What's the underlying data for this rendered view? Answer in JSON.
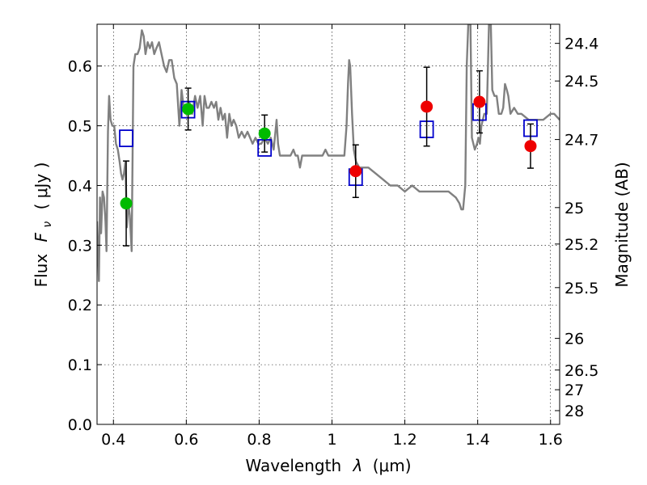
{
  "chart_data": {
    "type": "scatter",
    "title": "",
    "xlabel_prefix": "Wavelength",
    "xlabel_symbol": "λ",
    "xlabel_unit": "(μm)",
    "ylabel_prefix": "Flux",
    "ylabel_symbol": "F",
    "ylabel_subscript": "ν",
    "ylabel_unit": "( μJy )",
    "y2label": "Magnitude (AB)",
    "xlim": [
      0.355,
      1.625
    ],
    "ylim": [
      0.0,
      0.67
    ],
    "grid": true,
    "x_ticks": [
      0.4,
      0.6,
      0.8,
      1.0,
      1.2,
      1.4,
      1.6
    ],
    "x_tick_labels": [
      "0.4",
      "0.6",
      "0.8",
      "1",
      "1.2",
      "1.4",
      "1.6"
    ],
    "y_ticks": [
      0.0,
      0.1,
      0.2,
      0.3,
      0.4,
      0.5,
      0.6
    ],
    "y_tick_labels": [
      "0.0",
      "0.1",
      "0.2",
      "0.3",
      "0.4",
      "0.5",
      "0.6"
    ],
    "y2_ticks": [
      {
        "flux": 0.638,
        "label": "24.4"
      },
      {
        "flux": 0.575,
        "label": "24.5"
      },
      {
        "flux": 0.477,
        "label": "24.7"
      },
      {
        "flux": 0.363,
        "label": "25"
      },
      {
        "flux": 0.302,
        "label": "25.2"
      },
      {
        "flux": 0.229,
        "label": "25.5"
      },
      {
        "flux": 0.144,
        "label": "26"
      },
      {
        "flux": 0.091,
        "label": "26.5"
      },
      {
        "flux": 0.058,
        "label": "27"
      },
      {
        "flux": 0.023,
        "label": "28"
      }
    ],
    "series": [
      {
        "kind": "model_spectrum",
        "color": "#808080",
        "points": [
          [
            0.355,
            0.34
          ],
          [
            0.36,
            0.24
          ],
          [
            0.363,
            0.38
          ],
          [
            0.366,
            0.32
          ],
          [
            0.37,
            0.39
          ],
          [
            0.374,
            0.38
          ],
          [
            0.378,
            0.34
          ],
          [
            0.381,
            0.29
          ],
          [
            0.385,
            0.49
          ],
          [
            0.388,
            0.55
          ],
          [
            0.392,
            0.51
          ],
          [
            0.397,
            0.5
          ],
          [
            0.402,
            0.5
          ],
          [
            0.407,
            0.47
          ],
          [
            0.412,
            0.46
          ],
          [
            0.417,
            0.44
          ],
          [
            0.421,
            0.42
          ],
          [
            0.425,
            0.41
          ],
          [
            0.429,
            0.42
          ],
          [
            0.433,
            0.44
          ],
          [
            0.437,
            0.33
          ],
          [
            0.441,
            0.37
          ],
          [
            0.445,
            0.35
          ],
          [
            0.45,
            0.29
          ],
          [
            0.455,
            0.6
          ],
          [
            0.46,
            0.62
          ],
          [
            0.466,
            0.62
          ],
          [
            0.472,
            0.63
          ],
          [
            0.478,
            0.66
          ],
          [
            0.483,
            0.65
          ],
          [
            0.488,
            0.62
          ],
          [
            0.494,
            0.64
          ],
          [
            0.5,
            0.63
          ],
          [
            0.506,
            0.64
          ],
          [
            0.512,
            0.62
          ],
          [
            0.518,
            0.63
          ],
          [
            0.525,
            0.64
          ],
          [
            0.532,
            0.62
          ],
          [
            0.539,
            0.6
          ],
          [
            0.546,
            0.59
          ],
          [
            0.553,
            0.61
          ],
          [
            0.56,
            0.61
          ],
          [
            0.567,
            0.58
          ],
          [
            0.574,
            0.57
          ],
          [
            0.581,
            0.5
          ],
          [
            0.587,
            0.56
          ],
          [
            0.593,
            0.53
          ],
          [
            0.6,
            0.52
          ],
          [
            0.608,
            0.54
          ],
          [
            0.616,
            0.52
          ],
          [
            0.624,
            0.55
          ],
          [
            0.631,
            0.53
          ],
          [
            0.638,
            0.55
          ],
          [
            0.645,
            0.5
          ],
          [
            0.65,
            0.55
          ],
          [
            0.656,
            0.53
          ],
          [
            0.662,
            0.53
          ],
          [
            0.669,
            0.54
          ],
          [
            0.676,
            0.53
          ],
          [
            0.682,
            0.54
          ],
          [
            0.688,
            0.51
          ],
          [
            0.694,
            0.53
          ],
          [
            0.7,
            0.51
          ],
          [
            0.706,
            0.52
          ],
          [
            0.712,
            0.48
          ],
          [
            0.718,
            0.52
          ],
          [
            0.724,
            0.5
          ],
          [
            0.73,
            0.51
          ],
          [
            0.737,
            0.5
          ],
          [
            0.744,
            0.48
          ],
          [
            0.752,
            0.49
          ],
          [
            0.76,
            0.48
          ],
          [
            0.768,
            0.49
          ],
          [
            0.775,
            0.48
          ],
          [
            0.782,
            0.47
          ],
          [
            0.79,
            0.48
          ],
          [
            0.798,
            0.47
          ],
          [
            0.806,
            0.47
          ],
          [
            0.815,
            0.48
          ],
          [
            0.824,
            0.47
          ],
          [
            0.832,
            0.48
          ],
          [
            0.84,
            0.46
          ],
          [
            0.848,
            0.51
          ],
          [
            0.852,
            0.47
          ],
          [
            0.857,
            0.45
          ],
          [
            0.862,
            0.45
          ],
          [
            0.87,
            0.45
          ],
          [
            0.878,
            0.45
          ],
          [
            0.886,
            0.45
          ],
          [
            0.894,
            0.46
          ],
          [
            0.9,
            0.45
          ],
          [
            0.906,
            0.45
          ],
          [
            0.912,
            0.43
          ],
          [
            0.918,
            0.45
          ],
          [
            0.925,
            0.45
          ],
          [
            0.933,
            0.45
          ],
          [
            0.942,
            0.45
          ],
          [
            0.951,
            0.45
          ],
          [
            0.958,
            0.45
          ],
          [
            0.966,
            0.45
          ],
          [
            0.974,
            0.45
          ],
          [
            0.982,
            0.46
          ],
          [
            0.99,
            0.45
          ],
          [
            1.0,
            0.45
          ],
          [
            1.01,
            0.45
          ],
          [
            1.02,
            0.45
          ],
          [
            1.028,
            0.45
          ],
          [
            1.034,
            0.45
          ],
          [
            1.04,
            0.5
          ],
          [
            1.044,
            0.57
          ],
          [
            1.047,
            0.61
          ],
          [
            1.05,
            0.6
          ],
          [
            1.055,
            0.52
          ],
          [
            1.06,
            0.46
          ],
          [
            1.066,
            0.44
          ],
          [
            1.075,
            0.43
          ],
          [
            1.09,
            0.43
          ],
          [
            1.1,
            0.43
          ],
          [
            1.12,
            0.42
          ],
          [
            1.14,
            0.41
          ],
          [
            1.16,
            0.4
          ],
          [
            1.18,
            0.4
          ],
          [
            1.2,
            0.39
          ],
          [
            1.22,
            0.4
          ],
          [
            1.24,
            0.39
          ],
          [
            1.26,
            0.39
          ],
          [
            1.28,
            0.39
          ],
          [
            1.3,
            0.39
          ],
          [
            1.32,
            0.39
          ],
          [
            1.34,
            0.38
          ],
          [
            1.35,
            0.37
          ],
          [
            1.355,
            0.36
          ],
          [
            1.36,
            0.36
          ],
          [
            1.366,
            0.4
          ],
          [
            1.37,
            0.6
          ],
          [
            1.374,
            0.67
          ],
          [
            1.38,
            0.67
          ],
          [
            1.384,
            0.48
          ],
          [
            1.392,
            0.46
          ],
          [
            1.398,
            0.47
          ],
          [
            1.402,
            0.48
          ],
          [
            1.406,
            0.47
          ],
          [
            1.41,
            0.5
          ],
          [
            1.418,
            0.52
          ],
          [
            1.425,
            0.52
          ],
          [
            1.431,
            0.67
          ],
          [
            1.436,
            0.67
          ],
          [
            1.44,
            0.56
          ],
          [
            1.446,
            0.55
          ],
          [
            1.452,
            0.55
          ],
          [
            1.458,
            0.52
          ],
          [
            1.465,
            0.52
          ],
          [
            1.47,
            0.53
          ],
          [
            1.475,
            0.57
          ],
          [
            1.48,
            0.56
          ],
          [
            1.484,
            0.55
          ],
          [
            1.49,
            0.52
          ],
          [
            1.5,
            0.53
          ],
          [
            1.51,
            0.52
          ],
          [
            1.52,
            0.52
          ],
          [
            1.54,
            0.51
          ],
          [
            1.56,
            0.51
          ],
          [
            1.58,
            0.51
          ],
          [
            1.6,
            0.52
          ],
          [
            1.61,
            0.52
          ],
          [
            1.625,
            0.51
          ]
        ]
      },
      {
        "kind": "observed_flux",
        "color": "#00bb00",
        "x": [
          0.435,
          0.605,
          0.815
        ],
        "y": [
          0.37,
          0.528,
          0.487
        ],
        "yerr": [
          0.071,
          0.035,
          0.031
        ]
      },
      {
        "kind": "observed_flux",
        "color": "#ee0000",
        "x": [
          1.065,
          1.26,
          1.405,
          1.545
        ],
        "y": [
          0.424,
          0.532,
          0.54,
          0.466
        ],
        "yerr": [
          0.044,
          0.066,
          0.052,
          0.037
        ]
      },
      {
        "kind": "model_bandpass_flux",
        "color": "#0000cc",
        "x": [
          0.435,
          0.605,
          0.815,
          1.065,
          1.26,
          1.405,
          1.545
        ],
        "y": [
          0.479,
          0.527,
          0.463,
          0.414,
          0.494,
          0.523,
          0.496
        ]
      }
    ]
  }
}
